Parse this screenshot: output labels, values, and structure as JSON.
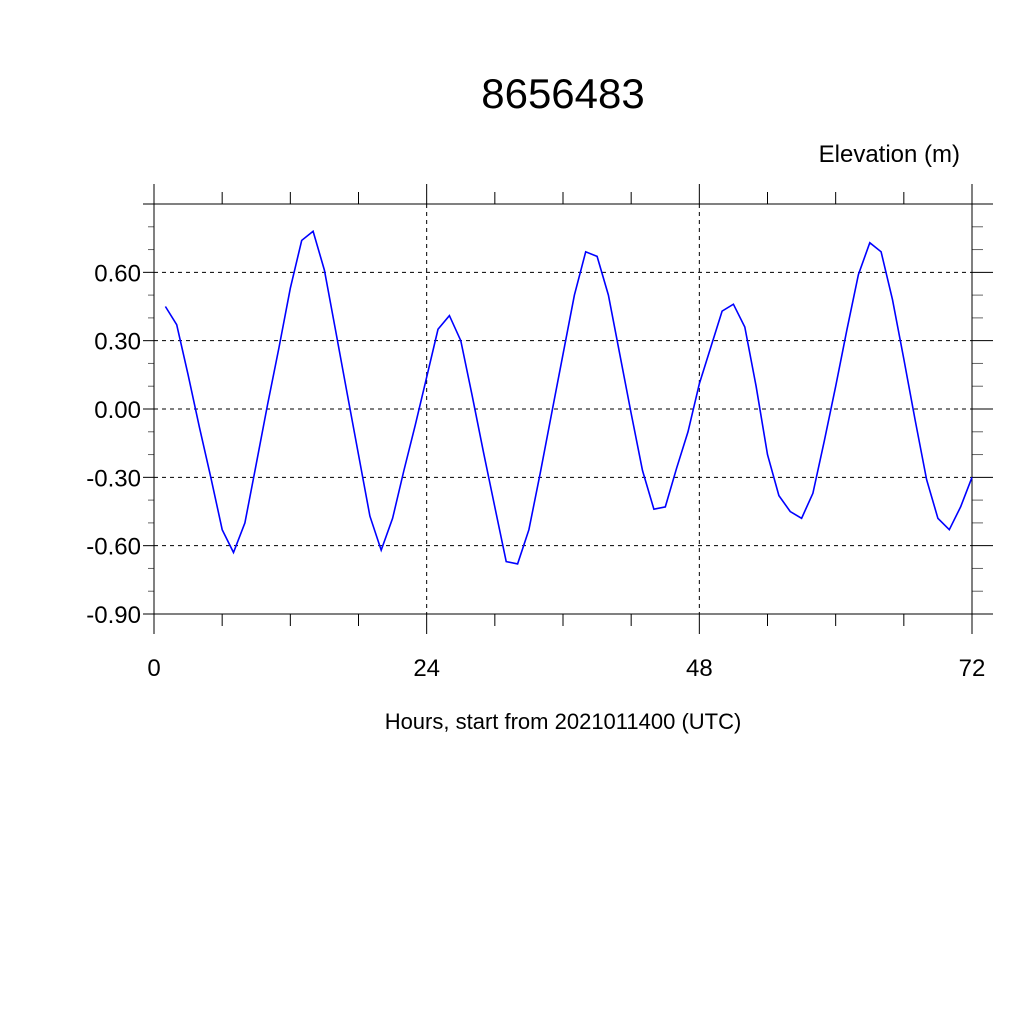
{
  "chart_data": {
    "type": "line",
    "title": "8656483",
    "subtitle": "Elevation (m)",
    "xlabel": "Hours, start from 2021011400 (UTC)",
    "ylabel": "",
    "xlim": [
      0,
      72
    ],
    "ylim": [
      -0.9,
      0.9
    ],
    "x_ticks": [
      0,
      24,
      48,
      72
    ],
    "x_tick_labels": [
      "0",
      "24",
      "48",
      "72"
    ],
    "y_ticks": [
      -0.9,
      -0.6,
      -0.3,
      0.0,
      0.3,
      0.6
    ],
    "y_tick_labels": [
      "-0.90",
      "-0.60",
      "-0.30",
      "0.00",
      "0.30",
      "0.60"
    ],
    "grid": true,
    "line_color": "#0000ff",
    "series": [
      {
        "x": [
          1,
          2,
          3,
          4,
          5,
          6,
          7,
          8,
          9,
          10,
          11,
          12,
          13,
          14,
          15,
          16,
          17,
          18,
          19,
          20,
          21,
          22,
          23,
          24,
          25,
          26,
          27,
          28,
          29,
          30,
          31,
          32,
          33,
          34,
          35,
          36,
          37,
          38,
          39,
          40,
          41,
          42,
          43,
          44,
          45,
          46,
          47,
          48,
          49,
          50,
          51,
          52,
          53,
          54,
          55,
          56,
          57,
          58,
          59,
          60,
          61,
          62,
          63,
          64,
          65,
          66,
          67,
          68,
          69,
          70,
          71,
          72
        ],
        "y": [
          0.45,
          0.37,
          0.15,
          -0.08,
          -0.3,
          -0.53,
          -0.63,
          -0.5,
          -0.24,
          0.02,
          0.27,
          0.53,
          0.74,
          0.78,
          0.61,
          0.34,
          0.07,
          -0.2,
          -0.47,
          -0.62,
          -0.48,
          -0.27,
          -0.07,
          0.14,
          0.35,
          0.41,
          0.3,
          0.06,
          -0.19,
          -0.43,
          -0.67,
          -0.68,
          -0.53,
          -0.28,
          -0.02,
          0.24,
          0.5,
          0.69,
          0.67,
          0.5,
          0.24,
          -0.02,
          -0.27,
          -0.44,
          -0.43,
          -0.26,
          -0.1,
          0.11,
          0.27,
          0.43,
          0.46,
          0.36,
          0.1,
          -0.2,
          -0.38,
          -0.45,
          -0.48,
          -0.37,
          -0.14,
          0.1,
          0.35,
          0.59,
          0.73,
          0.69,
          0.48,
          0.22,
          -0.05,
          -0.31,
          -0.48,
          -0.53,
          -0.43,
          -0.3
        ]
      }
    ]
  }
}
